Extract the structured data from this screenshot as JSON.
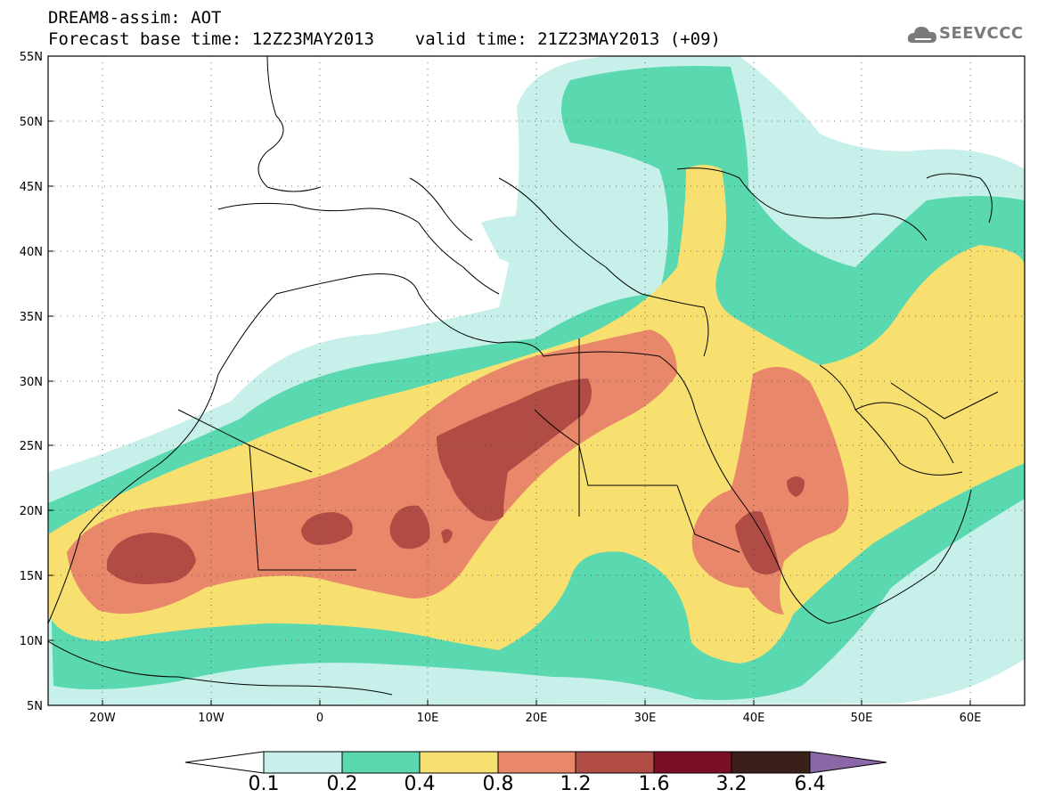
{
  "header": {
    "line1": "DREAM8-assim: AOT",
    "line2": "Forecast base time: 12Z23MAY2013    valid time: 21Z23MAY2013 (+09)"
  },
  "logo": {
    "text": "SEEVCCC",
    "icon": "cloud-icon"
  },
  "map": {
    "lat_range": [
      5,
      55
    ],
    "lon_range": [
      -25,
      65
    ],
    "lat_ticks": [
      "55N",
      "50N",
      "45N",
      "40N",
      "35N",
      "30N",
      "25N",
      "20N",
      "15N",
      "10N",
      "5N"
    ],
    "lon_ticks": [
      "20W",
      "10W",
      "0",
      "10E",
      "20E",
      "30E",
      "40E",
      "50E",
      "60E"
    ]
  },
  "colorbar": {
    "labels": [
      "0.1",
      "0.2",
      "0.4",
      "0.8",
      "1.2",
      "1.6",
      "3.2",
      "6.4"
    ],
    "colors": [
      "#c8f0ea",
      "#5ad8b0",
      "#f8e070",
      "#e8876a",
      "#b04c44",
      "#7a0f24",
      "#3a2018",
      "#8a68a8"
    ]
  }
}
